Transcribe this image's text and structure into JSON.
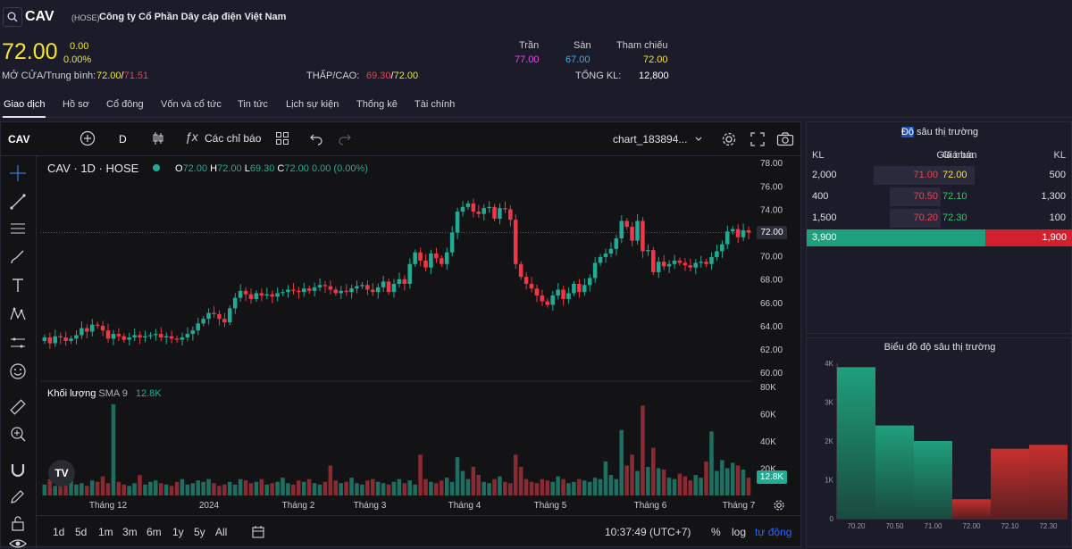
{
  "header": {
    "ticker": "CAV",
    "exchange": "(HOSE)",
    "company_name": "Công ty Cổ Phần Dây cáp điện Việt Nam",
    "price": "72.00",
    "change": "0.00",
    "change_pct": "0.00%",
    "open_avg_label": "MỞ CỬA/Trung bình:",
    "open": "72.00",
    "avg": "71.51",
    "low_high_label": "THẤP/CAO:",
    "low": "69.30",
    "high": "72.00",
    "ceiling_label": "Trần",
    "ceiling": "77.00",
    "floor_label": "Sàn",
    "floor": "67.00",
    "ref_label": "Tham chiếu",
    "ref": "72.00",
    "total_vol_label": "TỔNG KL:",
    "total_vol": "12,800"
  },
  "tabs": [
    "Giao dịch",
    "Hồ sơ",
    "Cổ đông",
    "Vốn và cổ tức",
    "Tin tức",
    "Lịch sự kiện",
    "Thống kê",
    "Tài chính"
  ],
  "chart_toolbar": {
    "symbol": "CAV",
    "interval": "D",
    "indicators_label": "Các chỉ báo",
    "layout_name": "chart_183894..."
  },
  "legend": {
    "title": "CAV · 1D · HOSE",
    "o_label": "O",
    "o": "72.00",
    "h_label": "H",
    "h": "72.00",
    "l_label": "L",
    "l": "69.30",
    "c_label": "C",
    "c": "72.00",
    "chg": "0.00 (0.00%)"
  },
  "volume_legend": {
    "label": "Khối lượng",
    "sma": "SMA 9",
    "value": "12.8K"
  },
  "last_price_label": "72.00",
  "last_volume_label": "12.8K",
  "bottom_bar": {
    "ranges": [
      "1d",
      "5d",
      "1m",
      "3m",
      "6m",
      "1y",
      "5y",
      "All"
    ],
    "time": "10:37:49 (UTC+7)",
    "pct": "%",
    "log": "log",
    "auto": "tự động"
  },
  "order_book": {
    "title": "Độ sâu thị trường",
    "col_kl": "KL",
    "col_bid": "Giá mua",
    "col_ask": "Giá bán",
    "col_kl2": "KL",
    "rows": [
      {
        "bid_vol": "2,000",
        "bid": "71.00",
        "ask": "72.00",
        "ask_vol": "500"
      },
      {
        "bid_vol": "400",
        "bid": "70.50",
        "ask": "72.10",
        "ask_vol": "1,300"
      },
      {
        "bid_vol": "1,500",
        "bid": "70.20",
        "ask": "72.30",
        "ask_vol": "100"
      }
    ],
    "total_bid": "3,900",
    "total_ask": "1,900"
  },
  "depth_chart_title": "Biểu đồ độ sâu thị trường",
  "chart_data": [
    {
      "type": "candlestick",
      "title": "CAV · 1D · HOSE",
      "ylim": [
        59.4,
        78.4
      ],
      "y_ticks": [
        "78.00",
        "76.00",
        "74.00",
        "72.00",
        "70.00",
        "68.00",
        "66.00",
        "64.00",
        "62.00",
        "60.00"
      ],
      "x_ticks": [
        "Tháng 12",
        "2024",
        "Tháng 2",
        "Tháng 3",
        "Tháng 4",
        "Tháng 5",
        "Tháng 6",
        "Tháng 7"
      ],
      "closes": [
        63.0,
        62.5,
        63.1,
        63.0,
        62.7,
        62.9,
        63.2,
        63.8,
        63.5,
        64.1,
        64.0,
        63.6,
        62.9,
        63.3,
        63.1,
        62.8,
        63.0,
        63.2,
        63.0,
        63.1,
        63.2,
        63.3,
        63.0,
        63.1,
        62.9,
        62.8,
        63.0,
        63.3,
        63.6,
        64.2,
        64.6,
        65.1,
        65.0,
        64.6,
        64.3,
        65.5,
        66.4,
        67.0,
        66.7,
        66.3,
        66.8,
        66.6,
        66.7,
        66.5,
        66.8,
        66.9,
        67.1,
        67.0,
        66.9,
        67.2,
        67.0,
        67.3,
        67.5,
        67.4,
        67.1,
        66.8,
        67.0,
        66.9,
        67.2,
        67.4,
        67.5,
        67.1,
        66.9,
        67.3,
        67.8,
        66.9,
        67.6,
        68.0,
        67.6,
        69.3,
        70.3,
        69.6,
        69.0,
        70.2,
        69.8,
        69.3,
        70.3,
        72.0,
        73.8,
        74.2,
        74.5,
        73.8,
        73.6,
        74.1,
        74.2,
        73.2,
        74.1,
        74.0,
        73.1,
        69.3,
        68.2,
        67.6,
        67.2,
        66.6,
        66.1,
        65.8,
        66.6,
        67.1,
        66.3,
        66.8,
        67.6,
        66.9,
        67.5,
        68.1,
        69.4,
        69.9,
        70.2,
        70.6,
        71.5,
        73.0,
        72.5,
        71.3,
        73.0,
        70.4,
        70.5,
        68.6,
        69.5,
        69.1,
        69.3,
        69.6,
        69.4,
        69.2,
        69.0,
        69.4,
        69.5,
        69.3,
        69.9,
        70.4,
        71.0,
        72.1,
        72.3,
        71.6,
        72.2,
        72.0
      ],
      "volumes_k": [
        8,
        12,
        7,
        9,
        10,
        12,
        8,
        9,
        7,
        11,
        10,
        14,
        9,
        67,
        10,
        8,
        7,
        9,
        15,
        8,
        10,
        11,
        9,
        8,
        7,
        10,
        12,
        8,
        9,
        11,
        10,
        12,
        9,
        7,
        8,
        10,
        8,
        12,
        11,
        9,
        10,
        12,
        8,
        9,
        10,
        13,
        9,
        8,
        11,
        10,
        12,
        9,
        8,
        10,
        22,
        11,
        9,
        10,
        13,
        9,
        8,
        11,
        12,
        10,
        9,
        8,
        10,
        12,
        9,
        11,
        8,
        30,
        12,
        10,
        9,
        11,
        13,
        10,
        28,
        18,
        12,
        21,
        15,
        10,
        9,
        12,
        14,
        10,
        9,
        30,
        21,
        12,
        10,
        9,
        12,
        11,
        10,
        14,
        12,
        9,
        10,
        12,
        11,
        10,
        13,
        12,
        25,
        15,
        12,
        48,
        22,
        30,
        18,
        66,
        21,
        35,
        20,
        19,
        13,
        12,
        16,
        14,
        11,
        15,
        13,
        25,
        47,
        18,
        26,
        20,
        24,
        22,
        19,
        13
      ]
    },
    {
      "type": "area",
      "title": "Biểu đồ độ sâu thị trường",
      "x_ticks": [
        "70.20",
        "70.50",
        "71.00",
        "72.00",
        "72.10",
        "72.30"
      ],
      "y_ticks": [
        "0",
        "1K",
        "2K",
        "3K",
        "4K"
      ],
      "bid_cumulative": [
        3900,
        2400,
        2000
      ],
      "ask_cumulative": [
        500,
        1800,
        1900
      ]
    }
  ]
}
